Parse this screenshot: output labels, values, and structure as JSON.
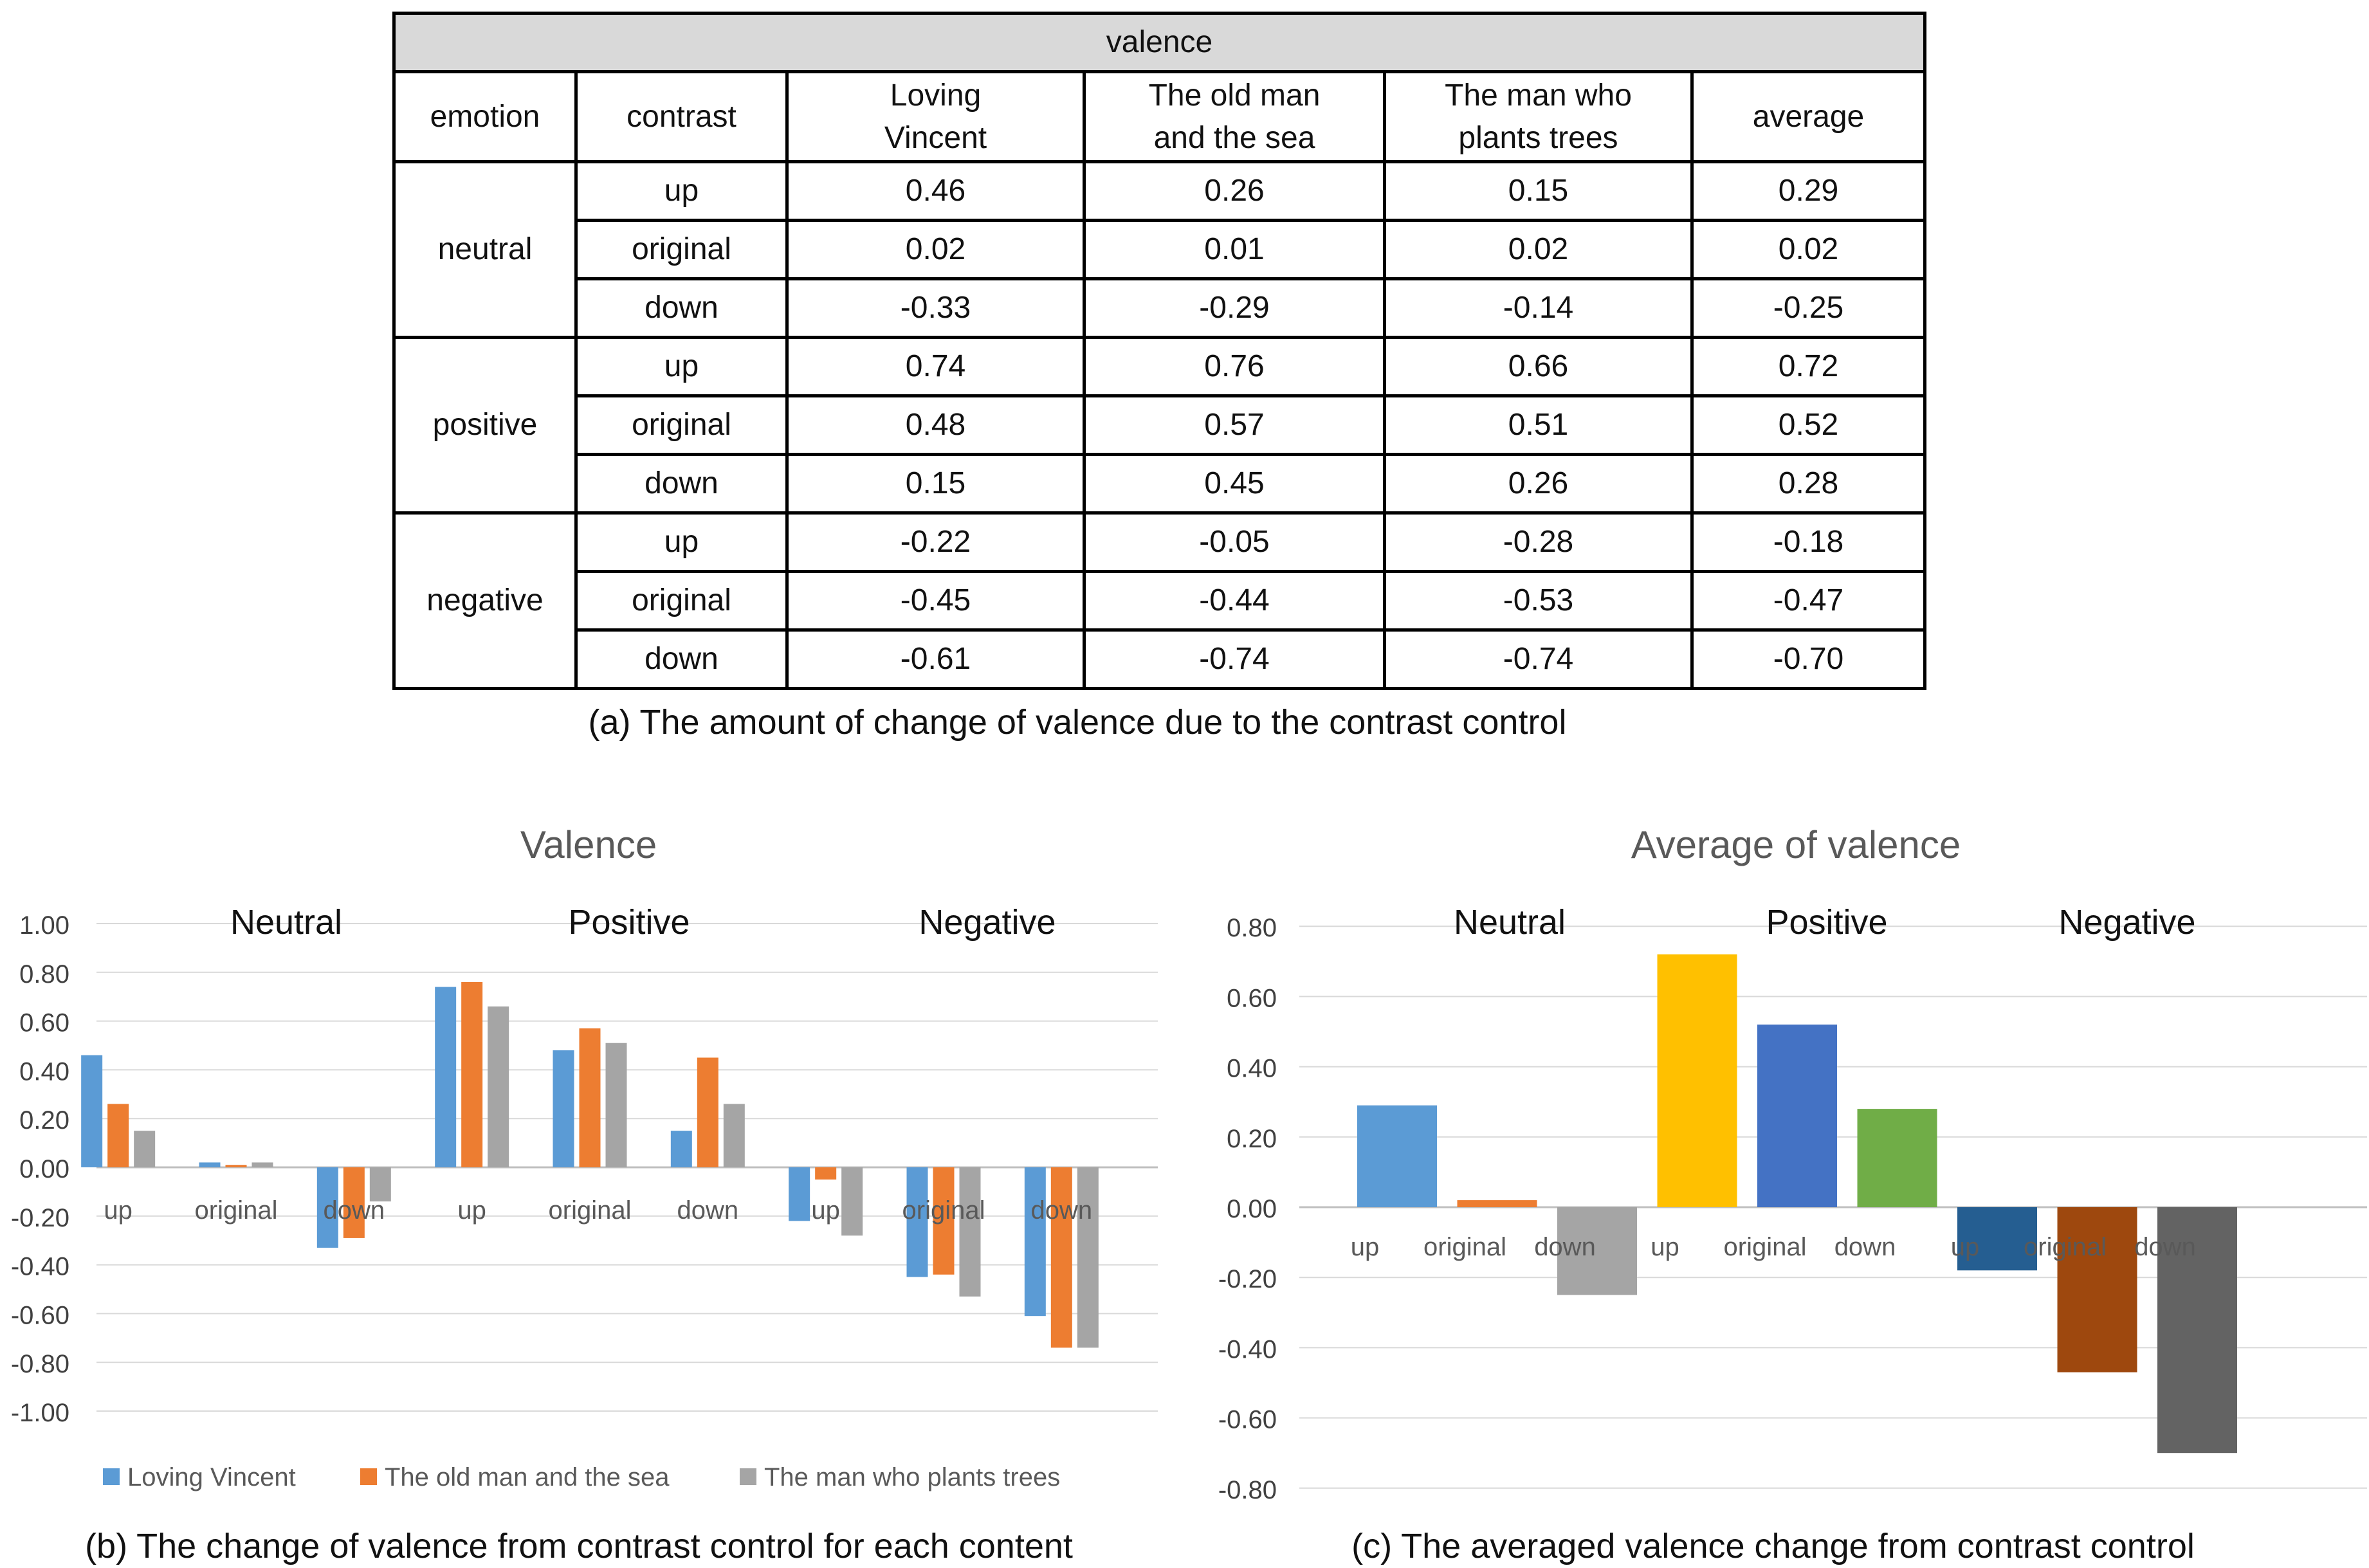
{
  "table": {
    "title": "valence",
    "headers": [
      "emotion",
      "contrast",
      "Loving\nVincent",
      "The old man\nand the sea",
      "The man who\nplants trees",
      "average"
    ],
    "groups": [
      {
        "emotion": "neutral",
        "rows": [
          {
            "contrast": "up",
            "values": [
              "0.46",
              "0.26",
              "0.15",
              "0.29"
            ]
          },
          {
            "contrast": "original",
            "values": [
              "0.02",
              "0.01",
              "0.02",
              "0.02"
            ]
          },
          {
            "contrast": "down",
            "values": [
              "-0.33",
              "-0.29",
              "-0.14",
              "-0.25"
            ]
          }
        ]
      },
      {
        "emotion": "positive",
        "rows": [
          {
            "contrast": "up",
            "values": [
              "0.74",
              "0.76",
              "0.66",
              "0.72"
            ]
          },
          {
            "contrast": "original",
            "values": [
              "0.48",
              "0.57",
              "0.51",
              "0.52"
            ]
          },
          {
            "contrast": "down",
            "values": [
              "0.15",
              "0.45",
              "0.26",
              "0.28"
            ]
          }
        ]
      },
      {
        "emotion": "negative",
        "rows": [
          {
            "contrast": "up",
            "values": [
              "-0.22",
              "-0.05",
              "-0.28",
              "-0.18"
            ]
          },
          {
            "contrast": "original",
            "values": [
              "-0.45",
              "-0.44",
              "-0.53",
              "-0.47"
            ]
          },
          {
            "contrast": "down",
            "values": [
              "-0.61",
              "-0.74",
              "-0.74",
              "-0.70"
            ]
          }
        ]
      }
    ]
  },
  "captions": {
    "a": "(a) The amount of change of valence due to the contrast control",
    "b": "(b) The change of valence from contrast control for each content",
    "c": "(c) The averaged valence change from contrast control"
  },
  "chart_data": [
    {
      "type": "bar",
      "title": "Valence",
      "groups": [
        "Neutral",
        "Positive",
        "Negative"
      ],
      "categories": [
        "up",
        "original",
        "down",
        "up",
        "original",
        "down",
        "up",
        "original",
        "down"
      ],
      "series": [
        {
          "name": "Loving Vincent",
          "color": "#5b9bd5",
          "values": [
            0.46,
            0.02,
            -0.33,
            0.74,
            0.48,
            0.15,
            -0.22,
            -0.45,
            -0.61
          ]
        },
        {
          "name": "The old man and the sea",
          "color": "#ed7d31",
          "values": [
            0.26,
            0.01,
            -0.29,
            0.76,
            0.57,
            0.45,
            -0.05,
            -0.44,
            -0.74
          ]
        },
        {
          "name": "The man who plants trees",
          "color": "#a5a5a5",
          "values": [
            0.15,
            0.02,
            -0.14,
            0.66,
            0.51,
            0.26,
            -0.28,
            -0.53,
            -0.74
          ]
        }
      ],
      "yticks": [
        "1.00",
        "0.80",
        "0.60",
        "0.40",
        "0.20",
        "0.00",
        "-0.20",
        "-0.40",
        "-0.60",
        "-0.80",
        "-1.00"
      ],
      "ylim": [
        -1.0,
        1.0
      ],
      "legend": "bottom"
    },
    {
      "type": "bar",
      "title": "Average of valence",
      "groups": [
        "Neutral",
        "Positive",
        "Negative"
      ],
      "categories": [
        "up",
        "original",
        "down",
        "up",
        "original",
        "down",
        "up",
        "original",
        "down"
      ],
      "values": [
        0.29,
        0.02,
        -0.25,
        0.72,
        0.52,
        0.28,
        -0.18,
        -0.47,
        -0.7
      ],
      "colors": [
        "#5b9bd5",
        "#ed7d31",
        "#a5a5a5",
        "#ffc000",
        "#4472c4",
        "#70ad47",
        "#255e91",
        "#9e480e",
        "#636363"
      ],
      "yticks": [
        "0.80",
        "0.60",
        "0.40",
        "0.20",
        "0.00",
        "-0.20",
        "-0.40",
        "-0.60",
        "-0.80"
      ],
      "ylim": [
        -0.8,
        0.8
      ]
    }
  ]
}
